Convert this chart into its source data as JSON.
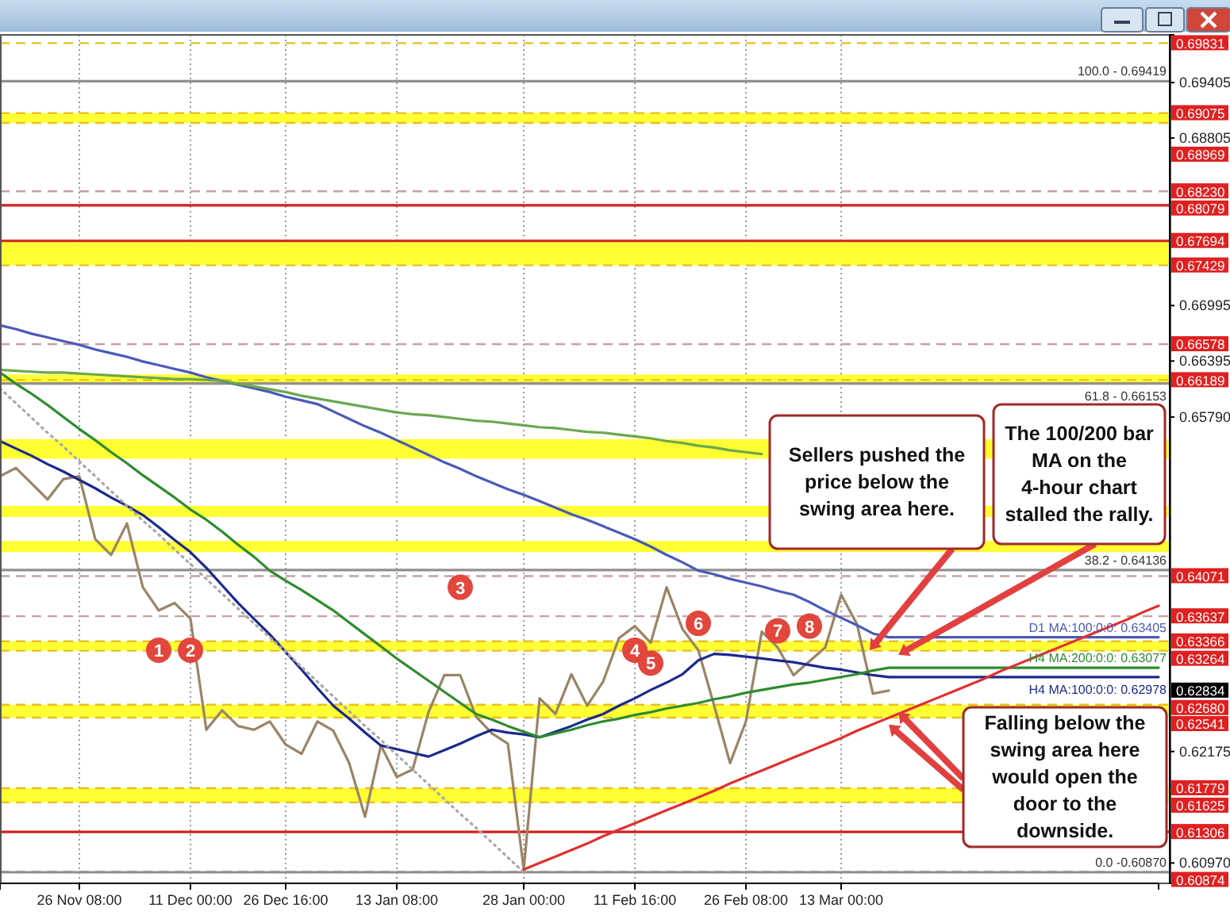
{
  "chart_data": {
    "type": "line",
    "categories": [
      null,
      null,
      null,
      null,
      null,
      "26 Nov 08:00",
      null,
      null,
      null,
      null,
      null,
      null,
      "11 Dec 00:00",
      null,
      null,
      null,
      null,
      null,
      "26 Dec 16:00",
      null,
      null,
      null,
      null,
      null,
      null,
      "13 Jan 08:00",
      null,
      null,
      null,
      null,
      null,
      null,
      null,
      "28 Jan 00:00",
      null,
      null,
      null,
      null,
      null,
      null,
      "11 Feb 16:00",
      null,
      null,
      null,
      null,
      null,
      null,
      "26 Feb 08:00",
      null,
      null,
      null,
      null,
      null,
      "13 Mar 00:00",
      null,
      null,
      null,
      null,
      null,
      null,
      null,
      null,
      null,
      null,
      null,
      null,
      null,
      null,
      null,
      null,
      null,
      null,
      null,
      null
    ],
    "ylim": [
      0.6075,
      0.6992
    ],
    "yticks": [
      {
        "value": 0.69405,
        "label": "0.69405"
      },
      {
        "value": 0.68805,
        "label": "0.68805"
      },
      {
        "value": 0.66995,
        "label": "0.66995"
      },
      {
        "value": 0.66395,
        "label": "0.66395"
      },
      {
        "value": 0.6579,
        "label": "0.65790"
      },
      {
        "value": 0.62175,
        "label": "0.62175"
      },
      {
        "value": 0.6097,
        "label": "0.60970"
      }
    ],
    "grid": "x",
    "series": [
      {
        "color": "#9a8466",
        "values": [
          0.6515,
          0.6524,
          0.6507,
          0.649,
          0.6512,
          0.6515,
          0.6447,
          0.643,
          0.6464,
          0.6395,
          0.637,
          0.6378,
          0.6361,
          0.6241,
          0.6262,
          0.6245,
          0.6241,
          0.625,
          0.6225,
          0.6215,
          0.625,
          0.624,
          0.6205,
          0.6147,
          0.6224,
          0.619,
          0.6198,
          0.626,
          0.63,
          0.63,
          0.6255,
          0.6237,
          0.6226,
          0.609,
          0.6275,
          0.6258,
          0.6301,
          0.6267,
          0.6293,
          0.634,
          0.6353,
          0.6335,
          0.6395,
          0.635,
          0.6327,
          0.6267,
          0.6205,
          0.625,
          0.6347,
          0.633,
          0.63,
          0.6315,
          0.633,
          0.6387,
          0.6355,
          0.628,
          0.62834,
          null,
          null,
          null,
          null,
          null,
          null,
          null,
          null,
          null,
          null,
          null,
          null,
          null,
          null,
          null,
          null,
          null
        ]
      },
      {
        "name": "H4 MA:100:0:0: 0.62978",
        "color": "#1c2a8c",
        "values": [
          0.6553,
          0.6545,
          0.6537,
          0.6528,
          0.652,
          0.6511,
          0.6502,
          0.6492,
          0.6483,
          0.6473,
          0.646,
          0.6446,
          0.6433,
          0.6416,
          0.6397,
          0.6378,
          0.6361,
          0.6344,
          0.6325,
          0.6306,
          0.6286,
          0.6267,
          0.6253,
          0.6238,
          0.6224,
          0.622,
          0.6216,
          0.6212,
          0.6219,
          0.6226,
          0.6234,
          0.6241,
          0.6238,
          0.6236,
          0.6233,
          0.6239,
          0.6245,
          0.6252,
          0.6258,
          0.6267,
          0.6275,
          0.6284,
          0.6292,
          0.6301,
          0.6316,
          0.6323,
          0.6322,
          0.632,
          0.6318,
          0.6316,
          0.6314,
          0.6311,
          0.6308,
          0.6306,
          0.6303,
          0.63,
          0.6298,
          0.6298,
          0.6298,
          0.6298,
          0.6298,
          0.6298,
          0.6298,
          0.6298,
          0.6298,
          0.6298,
          0.6298,
          0.6298,
          0.6298,
          0.6298,
          0.6298,
          0.6298,
          0.6298,
          0.6298
        ]
      },
      {
        "name": "H4 MA:200:0:0: 0.63077",
        "color": "#2e8b2e",
        "values": [
          0.6627,
          0.6615,
          0.6604,
          0.6592,
          0.6579,
          0.6566,
          0.6554,
          0.6541,
          0.6529,
          0.6516,
          0.6504,
          0.6492,
          0.6479,
          0.6468,
          0.6455,
          0.6441,
          0.6428,
          0.6413,
          0.6402,
          0.6392,
          0.6381,
          0.637,
          0.6357,
          0.6344,
          0.6331,
          0.6318,
          0.6306,
          0.6294,
          0.6282,
          0.627,
          0.6258,
          0.6252,
          0.6245,
          0.6239,
          0.6233,
          0.6237,
          0.6241,
          0.6246,
          0.625,
          0.6253,
          0.6257,
          0.626,
          0.6264,
          0.6267,
          0.627,
          0.6274,
          0.6277,
          0.6281,
          0.6284,
          0.6287,
          0.629,
          0.6292,
          0.6295,
          0.6298,
          0.6301,
          0.6305,
          0.6308,
          0.6308,
          0.6308,
          0.6308,
          0.6308,
          0.6308,
          0.6308,
          0.6308,
          0.6308,
          0.6308,
          0.6308,
          0.6308,
          0.6308,
          0.6308,
          0.6308,
          0.6308,
          0.6308,
          0.6308
        ]
      },
      {
        "name": "D1 MA:100:0:0: 0.63405",
        "color": "#4a5ab8",
        "values": [
          0.6678,
          0.6674,
          0.6669,
          0.6665,
          0.6661,
          0.6657,
          0.6652,
          0.6648,
          0.6644,
          0.6639,
          0.6635,
          0.6631,
          0.6627,
          0.6622,
          0.6618,
          0.6614,
          0.661,
          0.6606,
          0.6601,
          0.6597,
          0.6593,
          0.6585,
          0.6577,
          0.6569,
          0.6562,
          0.6554,
          0.6546,
          0.6538,
          0.653,
          0.6523,
          0.6515,
          0.6508,
          0.6501,
          0.6495,
          0.6488,
          0.6481,
          0.6474,
          0.6468,
          0.6461,
          0.6454,
          0.6447,
          0.6439,
          0.643,
          0.6422,
          0.6413,
          0.6409,
          0.6404,
          0.64,
          0.6396,
          0.6391,
          0.6387,
          0.6379,
          0.637,
          0.6362,
          0.6354,
          0.6345,
          0.6341,
          0.6341,
          0.6341,
          0.6341,
          0.6341,
          0.6341,
          0.6341,
          0.6341,
          0.6341,
          0.6341,
          0.6341,
          0.6341,
          0.6341,
          0.6341,
          0.6341,
          0.6341,
          0.6341,
          0.6341
        ]
      },
      {
        "color": "#6aa84f",
        "values": [
          0.663,
          0.6629,
          0.6628,
          0.6627,
          0.6627,
          0.6626,
          0.6625,
          0.6624,
          0.6623,
          0.6622,
          0.6621,
          0.662,
          0.662,
          0.6619,
          0.6618,
          0.6615,
          0.6612,
          0.6609,
          0.6606,
          0.6602,
          0.6599,
          0.6596,
          0.6593,
          0.659,
          0.6587,
          0.6584,
          0.6582,
          0.6581,
          0.6579,
          0.6577,
          0.6575,
          0.6574,
          0.6572,
          0.657,
          0.6568,
          0.6567,
          0.6565,
          0.6563,
          0.6562,
          0.656,
          0.6558,
          0.6556,
          0.6553,
          0.6551,
          0.6548,
          0.6546,
          0.6543,
          0.6541,
          0.6539,
          null,
          null,
          null,
          null,
          null,
          null,
          null,
          null,
          null,
          null,
          null,
          null,
          null,
          null,
          null,
          null,
          null,
          null,
          null,
          null,
          null,
          null,
          null,
          null,
          null
        ]
      },
      {
        "color": "#a8a8a8",
        "line_style": "dotted",
        "values": [
          0.661,
          0.6594,
          0.6578,
          0.6562,
          0.6547,
          0.6531,
          0.6515,
          0.6499,
          0.6483,
          0.6467,
          0.6452,
          0.6436,
          0.642,
          0.6404,
          0.6388,
          0.6372,
          0.6356,
          0.6341,
          0.6325,
          0.6309,
          0.6293,
          0.6277,
          0.6261,
          0.6245,
          0.623,
          0.6214,
          0.6198,
          0.6182,
          0.6166,
          0.615,
          0.6135,
          0.6119,
          0.6103,
          0.6087,
          null,
          null,
          null,
          null,
          null,
          null,
          null,
          null,
          null,
          null,
          null,
          null,
          null,
          null,
          null,
          null,
          null,
          null,
          null,
          null,
          null,
          null,
          null,
          null,
          null,
          null,
          null,
          null,
          null,
          null,
          null,
          null,
          null,
          null,
          null,
          null,
          null,
          null,
          null,
          null
        ]
      },
      {
        "color": "#e03030",
        "values": [
          null,
          null,
          null,
          null,
          null,
          null,
          null,
          null,
          null,
          null,
          null,
          null,
          null,
          null,
          null,
          null,
          null,
          null,
          null,
          null,
          null,
          null,
          null,
          null,
          null,
          null,
          null,
          null,
          null,
          null,
          null,
          null,
          null,
          0.609,
          0.6097,
          0.6104,
          0.6111,
          0.6118,
          0.6126,
          0.6133,
          0.614,
          0.6147,
          0.6154,
          0.6161,
          0.6168,
          0.6175,
          0.6183,
          0.619,
          0.6197,
          0.6204,
          0.6211,
          0.6218,
          0.6225,
          0.6232,
          0.624,
          0.6247,
          0.6254,
          0.6261,
          0.6268,
          0.6275,
          0.6282,
          0.6289,
          0.6296,
          0.6304,
          0.6311,
          0.6318,
          0.6325,
          0.6332,
          0.6339,
          0.6346,
          0.6353,
          0.636,
          0.6368,
          0.6375
        ]
      }
    ],
    "bands": [
      {
        "axis": "y",
        "from": 0.68969,
        "to": 0.69075,
        "color": "#ffff33"
      },
      {
        "axis": "y",
        "from": 0.67429,
        "to": 0.67694,
        "color": "#ffff33"
      },
      {
        "axis": "y",
        "from": 0.66153,
        "to": 0.6625,
        "color": "#ffff33"
      },
      {
        "axis": "y",
        "from": 0.6534,
        "to": 0.6555,
        "color": "#ffff33"
      },
      {
        "axis": "y",
        "from": 0.6471,
        "to": 0.6483,
        "color": "#ffff33"
      },
      {
        "axis": "y",
        "from": 0.6433,
        "to": 0.6445,
        "color": "#ffff33"
      },
      {
        "axis": "y",
        "from": 0.63264,
        "to": 0.63366,
        "color": "#ffff33"
      },
      {
        "axis": "y",
        "from": 0.62541,
        "to": 0.6268,
        "color": "#ffff33"
      },
      {
        "axis": "y",
        "from": 0.61625,
        "to": 0.61779,
        "color": "#ffff33"
      }
    ],
    "ref_lines": [
      {
        "axis": "y",
        "value": 0.69831,
        "label": "0.69831",
        "color": "#e8c020",
        "line_style": "dashed"
      },
      {
        "axis": "y",
        "value": 0.69075,
        "label": "0.69075",
        "color": "#e8c020",
        "line_style": "dashed"
      },
      {
        "axis": "y",
        "value": 0.68969,
        "label": "0.68969",
        "color": "#e8c020",
        "line_style": "dashed"
      },
      {
        "axis": "y",
        "value": 0.6823,
        "label": "0.68230",
        "color": "#c8a0a0",
        "line_style": "dashed"
      },
      {
        "axis": "y",
        "value": 0.68079,
        "label": "0.68079",
        "color": "#d42020",
        "line_style": "solid"
      },
      {
        "axis": "y",
        "value": 0.67694,
        "label": "0.67694",
        "color": "#d42020",
        "line_style": "solid"
      },
      {
        "axis": "y",
        "value": 0.67429,
        "label": "0.67429",
        "color": "#e8c020",
        "line_style": "dashed"
      },
      {
        "axis": "y",
        "value": 0.66578,
        "label": "0.66578",
        "color": "#c8a0a0",
        "line_style": "dashed"
      },
      {
        "axis": "y",
        "value": 0.66189,
        "label": "0.66189",
        "color": "#e8c020",
        "line_style": "dashed"
      },
      {
        "axis": "y",
        "value": 0.64071,
        "label": "0.64071",
        "color": "#c8a0a0",
        "line_style": "dashed"
      },
      {
        "axis": "y",
        "value": 0.63637,
        "label": "0.63637",
        "color": "#c8a0a0",
        "line_style": "dashed"
      },
      {
        "axis": "y",
        "value": 0.63366,
        "label": "0.63366",
        "color": "#e8c020",
        "line_style": "dashed"
      },
      {
        "axis": "y",
        "value": 0.63264,
        "label": "0.63264",
        "color": "#e8c020",
        "line_style": "dashed"
      },
      {
        "axis": "y",
        "value": 0.6268,
        "label": "0.62680",
        "color": "#e8c020",
        "line_style": "dashed"
      },
      {
        "axis": "y",
        "value": 0.62541,
        "label": "0.62541",
        "color": "#e8c020",
        "line_style": "dashed"
      },
      {
        "axis": "y",
        "value": 0.61779,
        "label": "0.61779",
        "color": "#e8c020",
        "line_style": "dashed"
      },
      {
        "axis": "y",
        "value": 0.61625,
        "label": "0.61625",
        "color": "#e8c020",
        "line_style": "dashed"
      },
      {
        "axis": "y",
        "value": 0.61306,
        "label": "0.61306",
        "color": "#d42020",
        "line_style": "solid"
      },
      {
        "axis": "y",
        "value": 0.60874,
        "label": "0.60874",
        "color": "#c8a0a0",
        "line_style": "dashed"
      },
      {
        "axis": "y",
        "value": 0.69419,
        "color": "#909090",
        "line_style": "solid"
      },
      {
        "axis": "y",
        "value": 0.66153,
        "color": "#909090",
        "line_style": "solid"
      },
      {
        "axis": "y",
        "value": 0.64136,
        "color": "#909090",
        "line_style": "solid"
      },
      {
        "axis": "y",
        "value": 0.6087,
        "color": "#909090",
        "line_style": "solid"
      }
    ],
    "annotations": [
      "Sellers pushed the price below the swing area here.",
      "The 100/200 bar MA on the 4-hour chart stalled the rally.",
      {
        "text": "Falling below the swing area here would open the door to the downside.",
        "y": 0.625
      },
      {
        "text": "1",
        "y": 0.6327
      },
      {
        "text": "2",
        "y": 0.6327
      },
      {
        "text": "3",
        "y": 0.6395
      },
      {
        "text": "4",
        "y": 0.6327
      },
      {
        "text": "5",
        "y": 0.6313
      },
      {
        "text": "6",
        "y": 0.6356
      },
      {
        "text": "7",
        "y": 0.6348
      },
      {
        "text": "8",
        "y": 0.6353
      },
      {
        "text": "100.0 - 0.69419",
        "y": 0.69419
      },
      {
        "text": "61.8 - 0.66153",
        "y": 0.66153
      },
      {
        "text": "38.2 - 0.64136",
        "y": 0.64136
      },
      {
        "text": "0.0 -0.60870",
        "y": 0.6087
      },
      "0.62834"
    ]
  }
}
